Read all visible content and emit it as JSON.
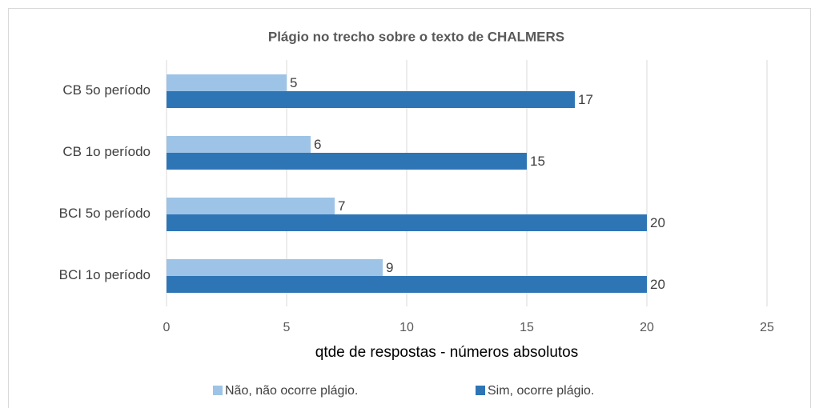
{
  "chart_data": {
    "type": "bar",
    "orientation": "horizontal",
    "title": "Plágio no trecho sobre o texto de CHALMERS",
    "x_label": "qtde de respostas - números absolutos",
    "categories": [
      "CB 5o período",
      "CB 1o período",
      "BCI 5o período",
      "BCI 1o período"
    ],
    "series": [
      {
        "name": "Não, não ocorre plágio.",
        "color": "#9dc3e6",
        "values": [
          5,
          6,
          7,
          9
        ]
      },
      {
        "name": "Sim, ocorre plágio.",
        "color": "#2e75b6",
        "values": [
          17,
          15,
          20,
          20
        ]
      }
    ],
    "xlim": [
      0,
      25
    ],
    "xticks": [
      0,
      5,
      10,
      15,
      20,
      25
    ],
    "grid": true,
    "legend": "bottom"
  }
}
